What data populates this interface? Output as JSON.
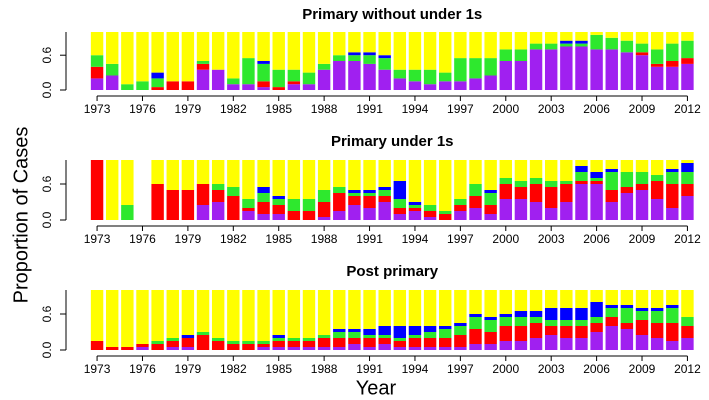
{
  "chart_data": [
    {
      "type": "stacked-bar",
      "title": "Primary without under 1s",
      "ylabel": "Proportion of Cases",
      "categories": [
        1973,
        null,
        null,
        1976,
        null,
        null,
        1979,
        null,
        null,
        1982,
        null,
        null,
        1985,
        null,
        null,
        1988,
        null,
        null,
        1991,
        null,
        null,
        1994,
        null,
        null,
        1997,
        null,
        null,
        2000,
        null,
        null,
        2003,
        null,
        null,
        2006,
        null,
        null,
        2009,
        null,
        null,
        2012
      ],
      "ylim": [
        0,
        1
      ],
      "yticks": [
        {
          "value": 0,
          "label": "0.0"
        },
        {
          "value": 0.6,
          "label": "0.6"
        }
      ],
      "series": [
        {
          "color": "#a020f0",
          "values": [
            0.2,
            0.25,
            0,
            0,
            0,
            0,
            0,
            0.35,
            0.35,
            0.1,
            0.1,
            0.05,
            0,
            0.1,
            0.1,
            0.35,
            0.5,
            0.5,
            0.45,
            0.35,
            0.2,
            0.15,
            0.1,
            0.15,
            0.15,
            0.2,
            0.25,
            0.5,
            0.5,
            0.7,
            0.7,
            0.75,
            0.75,
            0.7,
            0.7,
            0.65,
            0.6,
            0.4,
            0.4,
            0.45
          ]
        },
        {
          "color": "#ff0000",
          "values": [
            0.2,
            0,
            0,
            0,
            0.05,
            0.15,
            0.15,
            0.1,
            0,
            0,
            0,
            0.1,
            0.05,
            0.05,
            0,
            0,
            0,
            0,
            0,
            0,
            0,
            0,
            0,
            0,
            0,
            0,
            0,
            0,
            0,
            0,
            0,
            0,
            0,
            0,
            0,
            0,
            0.05,
            0.05,
            0.1,
            0.1
          ]
        },
        {
          "color": "#2ee82e",
          "values": [
            0.2,
            0.2,
            0.1,
            0.15,
            0.15,
            0,
            0,
            0.05,
            0,
            0.1,
            0.45,
            0.3,
            0.3,
            0.2,
            0.2,
            0.1,
            0.1,
            0.1,
            0.15,
            0.2,
            0.15,
            0.2,
            0.25,
            0.15,
            0.4,
            0.35,
            0.3,
            0.2,
            0.2,
            0.1,
            0.1,
            0.05,
            0.05,
            0.25,
            0.2,
            0.2,
            0.15,
            0.25,
            0.3,
            0.3
          ]
        },
        {
          "color": "#0000ff",
          "values": [
            0,
            0,
            0,
            0,
            0.1,
            0,
            0,
            0,
            0,
            0,
            0,
            0.05,
            0,
            0,
            0,
            0,
            0,
            0.05,
            0.05,
            0.05,
            0,
            0,
            0,
            0,
            0,
            0,
            0,
            0,
            0,
            0,
            0,
            0.05,
            0.05,
            0,
            0,
            0,
            0,
            0,
            0,
            0
          ]
        },
        {
          "color": "#ffff00",
          "values": [
            0.4,
            0.55,
            0.9,
            0.85,
            0.7,
            0.85,
            0.85,
            0.5,
            0.65,
            0.8,
            0.45,
            0.5,
            0.65,
            0.65,
            0.7,
            0.55,
            0.4,
            0.35,
            0.35,
            0.4,
            0.65,
            0.65,
            0.65,
            0.7,
            0.45,
            0.45,
            0.45,
            0.3,
            0.3,
            0.2,
            0.2,
            0.15,
            0.15,
            0.05,
            0.1,
            0.15,
            0.2,
            0.3,
            0.2,
            0.15
          ]
        }
      ]
    },
    {
      "type": "stacked-bar",
      "title": "Primary under 1s",
      "categories": [
        1973,
        null,
        null,
        1976,
        null,
        null,
        1979,
        null,
        null,
        1982,
        null,
        null,
        1985,
        null,
        null,
        1988,
        null,
        null,
        1991,
        null,
        null,
        1994,
        null,
        null,
        1997,
        null,
        null,
        2000,
        null,
        null,
        2003,
        null,
        null,
        2006,
        null,
        null,
        2009,
        null,
        null,
        2012
      ],
      "ylim": [
        0,
        1
      ],
      "yticks": [
        {
          "value": 0,
          "label": "0.0"
        },
        {
          "value": 0.6,
          "label": "0.6"
        }
      ],
      "series": [
        {
          "color": "#a020f0",
          "values": [
            0,
            0,
            0,
            null,
            0,
            0,
            0,
            0.25,
            0.3,
            0,
            0.15,
            0.1,
            0.1,
            0,
            0,
            0.05,
            0.15,
            0.25,
            0.2,
            0.3,
            0.1,
            0.15,
            0.05,
            0,
            0.15,
            0.2,
            0.1,
            0.35,
            0.35,
            0.3,
            0.2,
            0.3,
            0.6,
            0.6,
            0.3,
            0.45,
            0.5,
            0.35,
            0.2,
            0.4
          ]
        },
        {
          "color": "#ff0000",
          "values": [
            1,
            0,
            0,
            null,
            0.6,
            0.5,
            0.5,
            0.35,
            0.2,
            0.4,
            0.05,
            0.2,
            0.15,
            0.15,
            0.15,
            0.25,
            0.3,
            0.15,
            0.2,
            0.1,
            0.1,
            0.05,
            0.1,
            0.1,
            0.1,
            0.2,
            0.15,
            0.25,
            0.2,
            0.3,
            0.35,
            0.3,
            0.05,
            0.05,
            0.2,
            0.1,
            0.1,
            0.3,
            0.4,
            0.2
          ]
        },
        {
          "color": "#2ee82e",
          "values": [
            0,
            0,
            0.25,
            null,
            0,
            0,
            0,
            0,
            0.1,
            0.15,
            0.15,
            0.15,
            0.1,
            0.2,
            0.2,
            0.2,
            0.1,
            0.05,
            0.05,
            0.1,
            0.15,
            0.05,
            0.1,
            0.05,
            0.1,
            0.2,
            0.2,
            0.1,
            0.1,
            0.1,
            0.1,
            0.05,
            0.15,
            0.05,
            0.3,
            0.25,
            0.2,
            0.1,
            0.2,
            0.2
          ]
        },
        {
          "color": "#0000ff",
          "values": [
            0,
            0,
            0,
            null,
            0,
            0,
            0,
            0,
            0,
            0,
            0,
            0.1,
            0.05,
            0,
            0,
            0,
            0,
            0.05,
            0.05,
            0.05,
            0.3,
            0.05,
            0,
            0,
            0,
            0,
            0.05,
            0,
            0,
            0,
            0,
            0,
            0.1,
            0.1,
            0.05,
            0,
            0,
            0,
            0.05,
            0.15
          ]
        },
        {
          "color": "#ffff00",
          "values": [
            0,
            1,
            0.75,
            null,
            0.4,
            0.5,
            0.5,
            0.4,
            0.4,
            0.45,
            0.65,
            0.45,
            0.6,
            0.65,
            0.65,
            0.5,
            0.45,
            0.5,
            0.5,
            0.45,
            0.35,
            0.7,
            0.75,
            0.85,
            0.65,
            0.4,
            0.5,
            0.3,
            0.35,
            0.3,
            0.35,
            0.35,
            0.1,
            0.2,
            0.15,
            0.2,
            0.2,
            0.25,
            0.15,
            0.05
          ]
        }
      ]
    },
    {
      "type": "stacked-bar",
      "title": "Post primary",
      "xlabel": "Year",
      "categories": [
        1973,
        null,
        null,
        1976,
        null,
        null,
        1979,
        null,
        null,
        1982,
        null,
        null,
        1985,
        null,
        null,
        1988,
        null,
        null,
        1991,
        null,
        null,
        1994,
        null,
        null,
        1997,
        null,
        null,
        2000,
        null,
        null,
        2003,
        null,
        null,
        2006,
        null,
        null,
        2009,
        null,
        null,
        2012
      ],
      "ylim": [
        0,
        1
      ],
      "yticks": [
        {
          "value": 0,
          "label": "0.0"
        },
        {
          "value": 0.6,
          "label": "0.6"
        }
      ],
      "series": [
        {
          "color": "#a020f0",
          "values": [
            0,
            0,
            0,
            0.05,
            0,
            0.05,
            0.05,
            0,
            0,
            0,
            0,
            0.05,
            0.05,
            0.05,
            0.05,
            0.05,
            0.05,
            0.1,
            0.05,
            0.1,
            0.05,
            0.05,
            0.05,
            0.05,
            0.05,
            0.1,
            0.1,
            0.15,
            0.15,
            0.2,
            0.25,
            0.2,
            0.2,
            0.3,
            0.4,
            0.35,
            0.25,
            0.2,
            0.15,
            0.2
          ]
        },
        {
          "color": "#ff0000",
          "values": [
            0.15,
            0.05,
            0.05,
            0.05,
            0.1,
            0.1,
            0.15,
            0.25,
            0.15,
            0.1,
            0.1,
            0.05,
            0.1,
            0.1,
            0.1,
            0.15,
            0.15,
            0.1,
            0.15,
            0.1,
            0.1,
            0.15,
            0.15,
            0.15,
            0.2,
            0.25,
            0.2,
            0.25,
            0.25,
            0.25,
            0.15,
            0.2,
            0.2,
            0.15,
            0.15,
            0.1,
            0.25,
            0.25,
            0.3,
            0.2
          ]
        },
        {
          "color": "#2ee82e",
          "values": [
            0,
            0,
            0,
            0,
            0.05,
            0.05,
            0,
            0.05,
            0.05,
            0.05,
            0.05,
            0.05,
            0.05,
            0.05,
            0.05,
            0.05,
            0.1,
            0.1,
            0.05,
            0.05,
            0.05,
            0.05,
            0.1,
            0.15,
            0.15,
            0.2,
            0.2,
            0.15,
            0.15,
            0.1,
            0.1,
            0.1,
            0.1,
            0.1,
            0.15,
            0.25,
            0.15,
            0.2,
            0.25,
            0.15
          ]
        },
        {
          "color": "#0000ff",
          "values": [
            0,
            0,
            0,
            0,
            0,
            0,
            0.05,
            0,
            0,
            0,
            0,
            0,
            0.05,
            0,
            0,
            0,
            0.05,
            0.05,
            0.1,
            0.15,
            0.2,
            0.15,
            0.1,
            0.05,
            0.05,
            0.05,
            0.05,
            0.05,
            0.1,
            0.1,
            0.2,
            0.2,
            0.2,
            0.25,
            0.05,
            0.05,
            0.05,
            0.05,
            0.05,
            0
          ]
        },
        {
          "color": "#ffff00",
          "values": [
            0.85,
            0.95,
            0.95,
            0.9,
            0.85,
            0.8,
            0.75,
            0.7,
            0.8,
            0.85,
            0.85,
            0.85,
            0.75,
            0.8,
            0.8,
            0.75,
            0.65,
            0.65,
            0.65,
            0.6,
            0.6,
            0.6,
            0.6,
            0.6,
            0.55,
            0.4,
            0.45,
            0.4,
            0.35,
            0.35,
            0.3,
            0.3,
            0.3,
            0.2,
            0.25,
            0.25,
            0.3,
            0.3,
            0.25,
            0.45
          ]
        }
      ]
    }
  ]
}
